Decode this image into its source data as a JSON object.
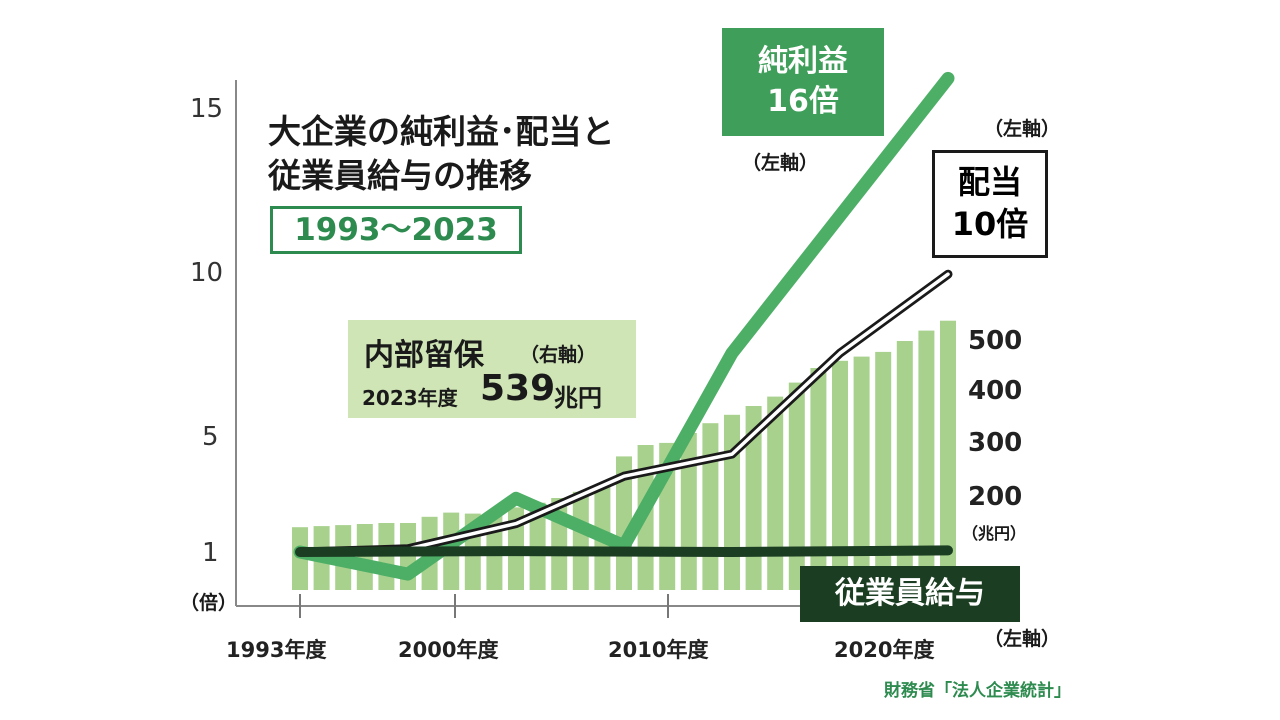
{
  "title": {
    "line1": "大企業の純利益･配当と",
    "line2": "従業員給与の推移",
    "period": "1993〜2023"
  },
  "source": "財務省「法人企業統計」",
  "left_axis": {
    "ticks": [
      "15",
      "10",
      "5",
      "1"
    ],
    "unit": "（倍）"
  },
  "right_axis": {
    "ticks": [
      "500",
      "400",
      "300",
      "200"
    ],
    "unit": "（兆円）"
  },
  "x_axis": {
    "ticks": [
      "1993年度",
      "2000年度",
      "2010年度",
      "2020年度"
    ]
  },
  "annotations": {
    "retained": {
      "label": "内部留保",
      "axis": "（右軸）",
      "prefix": "2023年度",
      "value": "539",
      "unit": "兆円"
    },
    "net_profit": {
      "label": "純利益",
      "value": "16倍",
      "axis": "（左軸）"
    },
    "dividend": {
      "label": "配当",
      "value": "10倍",
      "axis": "（左軸）"
    },
    "wage": {
      "label": "従業員給与",
      "axis": "（左軸）"
    }
  },
  "colors": {
    "bars": "#a9d18e",
    "net_profit": "#4daf66",
    "dividend": "#1a1a1a",
    "wage": "#1b3d22",
    "accent": "#2e8b4f"
  },
  "chart_data": {
    "type": "bar+line",
    "x": [
      1993,
      1994,
      1995,
      1996,
      1997,
      1998,
      1999,
      2000,
      2001,
      2002,
      2003,
      2004,
      2005,
      2006,
      2007,
      2008,
      2009,
      2010,
      2011,
      2012,
      2013,
      2014,
      2015,
      2016,
      2017,
      2018,
      2019,
      2020,
      2021,
      2022,
      2023
    ],
    "bars": {
      "name": "内部留保",
      "axis": "right",
      "unit": "兆円",
      "values": [
        142,
        144,
        146,
        148,
        150,
        150,
        162,
        170,
        168,
        173,
        180,
        189,
        198,
        210,
        222,
        278,
        300,
        304,
        323,
        342,
        358,
        375,
        393,
        420,
        448,
        462,
        470,
        479,
        500,
        520,
        539
      ]
    },
    "series": [
      {
        "name": "純利益",
        "axis": "left",
        "points": [
          [
            1993,
            1
          ],
          [
            1998,
            0.3
          ],
          [
            2003,
            2.7
          ],
          [
            2008,
            1.2
          ],
          [
            2013,
            7.3
          ],
          [
            2023,
            16
          ]
        ]
      },
      {
        "name": "配当",
        "axis": "left",
        "points": [
          [
            1993,
            1
          ],
          [
            1998,
            1.1
          ],
          [
            2003,
            1.9
          ],
          [
            2008,
            3.4
          ],
          [
            2013,
            4.1
          ],
          [
            2018,
            7.3
          ],
          [
            2023,
            9.8
          ]
        ]
      },
      {
        "name": "従業員給与",
        "axis": "left",
        "points": [
          [
            1993,
            1
          ],
          [
            2003,
            1.03
          ],
          [
            2013,
            1.0
          ],
          [
            2023,
            1.05
          ]
        ]
      }
    ],
    "left_ylim": [
      0,
      16
    ],
    "right_ylim": [
      0,
      560
    ],
    "grid": false
  }
}
